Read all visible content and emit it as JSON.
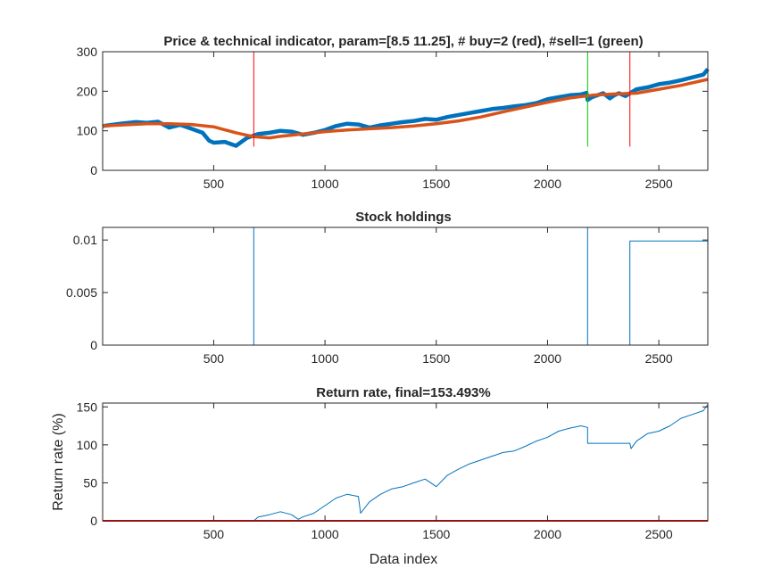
{
  "chart_data": [
    {
      "type": "line",
      "title": "Price & technical indicator, param=[8.5 11.25],  # buy=2 (red), #sell=1 (green)",
      "xlabel": "",
      "ylabel": "",
      "xlim": [
        1,
        2720
      ],
      "ylim": [
        0,
        300
      ],
      "xticks": [
        500,
        1000,
        1500,
        2000,
        2500
      ],
      "yticks": [
        0,
        100,
        200,
        300
      ],
      "grid": false,
      "colors": {
        "price": "#0072BD",
        "indicator": "#D95319",
        "buy": "#FF0000",
        "sell": "#00CC00"
      },
      "series": [
        {
          "key": "price",
          "x": [
            1,
            80,
            150,
            200,
            250,
            300,
            350,
            400,
            450,
            480,
            500,
            550,
            600,
            650,
            680,
            700,
            750,
            800,
            850,
            900,
            950,
            1000,
            1050,
            1100,
            1150,
            1200,
            1250,
            1300,
            1350,
            1400,
            1450,
            1500,
            1550,
            1600,
            1650,
            1700,
            1750,
            1800,
            1850,
            1900,
            1950,
            2000,
            2050,
            2100,
            2150,
            2175,
            2180,
            2200,
            2250,
            2280,
            2300,
            2320,
            2350,
            2400,
            2450,
            2500,
            2550,
            2600,
            2650,
            2700,
            2720
          ],
          "values": [
            112,
            118,
            122,
            120,
            123,
            108,
            115,
            105,
            95,
            75,
            70,
            72,
            62,
            82,
            88,
            92,
            95,
            100,
            98,
            90,
            95,
            102,
            112,
            118,
            116,
            108,
            114,
            118,
            122,
            125,
            130,
            128,
            135,
            140,
            145,
            150,
            155,
            158,
            162,
            165,
            170,
            180,
            185,
            190,
            192,
            196,
            178,
            185,
            195,
            182,
            190,
            195,
            188,
            205,
            210,
            218,
            222,
            228,
            235,
            242,
            256
          ]
        },
        {
          "key": "indicator",
          "x": [
            1,
            100,
            200,
            300,
            400,
            500,
            600,
            680,
            750,
            800,
            900,
            1000,
            1100,
            1200,
            1300,
            1400,
            1500,
            1600,
            1700,
            1800,
            1900,
            2000,
            2100,
            2200,
            2300,
            2400,
            2500,
            2600,
            2720
          ],
          "values": [
            112,
            115,
            118,
            118,
            116,
            110,
            95,
            85,
            82,
            86,
            92,
            98,
            102,
            105,
            108,
            112,
            118,
            125,
            135,
            148,
            160,
            172,
            183,
            190,
            193,
            195,
            205,
            215,
            230
          ]
        }
      ],
      "buy_x": [
        680,
        2370
      ],
      "sell_x": [
        2180
      ],
      "signal_ylim": [
        60,
        300
      ]
    },
    {
      "type": "line",
      "title": "Stock holdings",
      "xlabel": "",
      "ylabel": "",
      "xlim": [
        1,
        2720
      ],
      "ylim": [
        0,
        0.0112
      ],
      "xticks": [
        500,
        1000,
        1500,
        2000,
        2500
      ],
      "yticks": [
        0,
        0.005,
        0.01
      ],
      "ytick_labels": [
        "0",
        "0.005",
        "0.01"
      ],
      "grid": false,
      "colors": {
        "line": "#0072BD"
      },
      "series": [
        {
          "key": "holdings",
          "x": [
            1,
            680,
            680,
            2180,
            2180,
            2370,
            2370,
            2720
          ],
          "values": [
            0,
            0,
            0.0112,
            0.0112,
            0,
            0,
            0.0099,
            0.0099
          ]
        }
      ]
    },
    {
      "type": "line",
      "title": "Return rate, final=153.493%",
      "xlabel": "Data index",
      "ylabel": "Return rate (%)",
      "xlim": [
        1,
        2720
      ],
      "ylim": [
        0,
        155
      ],
      "xticks": [
        500,
        1000,
        1500,
        2000,
        2500
      ],
      "yticks": [
        0,
        50,
        100,
        150
      ],
      "grid": false,
      "colors": {
        "line": "#0072BD",
        "baseline": "#FF0000"
      },
      "series": [
        {
          "key": "return",
          "x": [
            1,
            680,
            700,
            750,
            800,
            850,
            880,
            900,
            950,
            1000,
            1050,
            1100,
            1150,
            1160,
            1200,
            1250,
            1300,
            1350,
            1400,
            1450,
            1500,
            1550,
            1600,
            1650,
            1700,
            1750,
            1800,
            1850,
            1900,
            1950,
            2000,
            2050,
            2100,
            2150,
            2180,
            2180,
            2370,
            2375,
            2400,
            2450,
            2500,
            2550,
            2600,
            2650,
            2700,
            2720
          ],
          "values": [
            0,
            0,
            5,
            8,
            12,
            8,
            2,
            5,
            10,
            20,
            30,
            35,
            32,
            10,
            25,
            35,
            42,
            45,
            50,
            55,
            45,
            60,
            68,
            75,
            80,
            85,
            90,
            92,
            98,
            105,
            110,
            118,
            122,
            125,
            123,
            102,
            102,
            95,
            105,
            115,
            118,
            125,
            135,
            140,
            145,
            153
          ]
        },
        {
          "key": "zero",
          "x": [
            1,
            2720
          ],
          "values": [
            0,
            0
          ]
        }
      ]
    }
  ]
}
